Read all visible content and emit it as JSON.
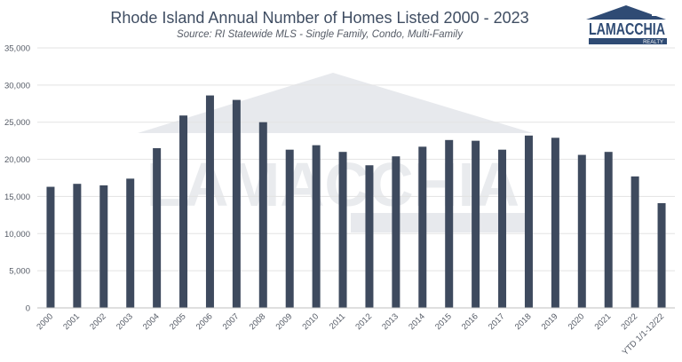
{
  "brand": {
    "name": "LAMACCHIA",
    "tagline": "REALTY",
    "color": "#2f4b74"
  },
  "chart_data": {
    "type": "bar",
    "title": "Rhode Island Annual Number of Homes Listed 2000 - 2023",
    "subtitle": "Source: RI Statewide MLS - Single Family, Condo, Multi-Family",
    "categories": [
      "2000",
      "2001",
      "2002",
      "2003",
      "2004",
      "2005",
      "2006",
      "2007",
      "2008",
      "2009",
      "2010",
      "2011",
      "2012",
      "2013",
      "2014",
      "2015",
      "2016",
      "2017",
      "2018",
      "2019",
      "2020",
      "2021",
      "2022",
      "YTD 1/1-12/22"
    ],
    "values": [
      16300,
      16700,
      16500,
      17400,
      21500,
      25900,
      28600,
      28000,
      25000,
      21300,
      21900,
      21000,
      19200,
      20400,
      21700,
      22600,
      22500,
      21300,
      23200,
      22900,
      20600,
      21000,
      17700,
      14100
    ],
    "ylim": [
      0,
      35000
    ],
    "yticks": [
      "0",
      "5,000",
      "10,000",
      "15,000",
      "20,000",
      "25,000",
      "30,000",
      "35,000"
    ],
    "ytick_values": [
      0,
      5000,
      10000,
      15000,
      20000,
      25000,
      30000,
      35000
    ],
    "grid": true,
    "bar_color": "#3e4a5e",
    "xlabel": "",
    "ylabel": ""
  }
}
